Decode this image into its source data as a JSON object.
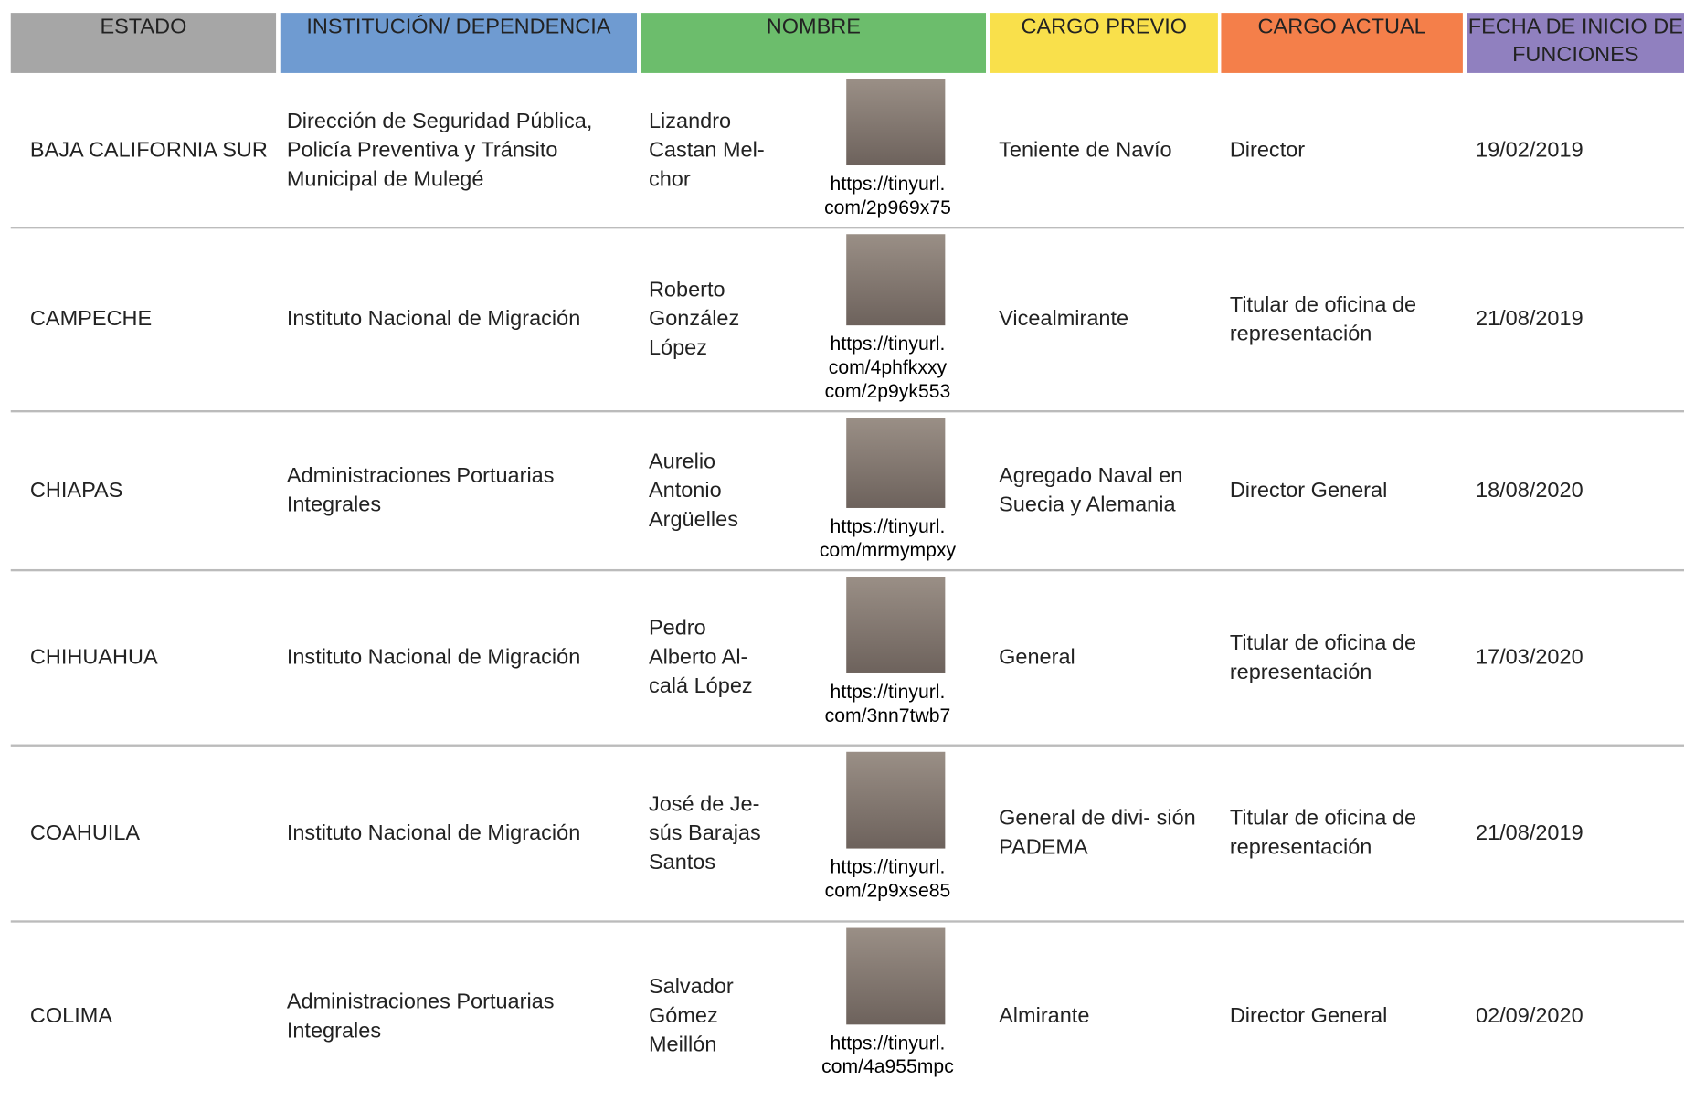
{
  "header": {
    "columns": [
      "ESTADO",
      "INSTITUCIÓN/ DEPENDENCIA",
      "NOMBRE",
      "CARGO PREVIO",
      "CARGO ACTUAL",
      "FECHA DE INICIO DE FUNCIONES"
    ]
  },
  "table": {
    "rows": [
      {
        "estado": "BAJA CALIFORNIA SUR",
        "institucion": "Dirección de Seguridad Pública, Policía Preventiva y Tránsito Municipal de Mulegé",
        "nombre": [
          "Lizandro",
          "Castan Mel-",
          "chor"
        ],
        "link": [
          "https://tinyurl.",
          "com/2p969x75"
        ],
        "cargo_previo": "Teniente de Navío",
        "cargo_actual": "Director",
        "fecha": "19/02/2019"
      },
      {
        "estado": "CAMPECHE",
        "institucion": "Instituto Nacional de Migración",
        "nombre": [
          "Roberto",
          "González",
          "López"
        ],
        "link": [
          "https://tinyurl.",
          "com/4phfkxxy",
          "com/2p9yk553"
        ],
        "cargo_previo": "Vicealmirante",
        "cargo_actual": "Titular de oficina de representación",
        "fecha": "21/08/2019"
      },
      {
        "estado": "CHIAPAS",
        "institucion": "Administraciones Portuarias Integrales",
        "nombre": [
          "Aurelio",
          "Antonio",
          "Argüelles"
        ],
        "link": [
          "https://tinyurl.",
          "com/mrmympxy"
        ],
        "cargo_previo": "Agregado Naval en Suecia y Alemania",
        "cargo_actual": "Director General",
        "fecha": "18/08/2020"
      },
      {
        "estado": "CHIHUAHUA",
        "institucion": "Instituto Nacional de Migración",
        "nombre": [
          "Pedro",
          "Alberto Al-",
          "calá López"
        ],
        "link": [
          "https://tinyurl.",
          "com/3nn7twb7"
        ],
        "cargo_previo": "General",
        "cargo_actual": "Titular de oficina de representación",
        "fecha": "17/03/2020"
      },
      {
        "estado": "COAHUILA",
        "institucion": "Instituto Nacional de Migración",
        "nombre": [
          "José de Je-",
          "sús Barajas",
          "Santos"
        ],
        "link": [
          "https://tinyurl.",
          "com/2p9xse85"
        ],
        "cargo_previo": "General de divi- sión PADEMA",
        "cargo_actual": "Titular de oficina de representación",
        "fecha": "21/08/2019"
      },
      {
        "estado": "COLIMA",
        "institucion": "Administraciones Portuarias Integrales",
        "nombre": [
          "Salvador",
          "Gómez",
          "Meillón"
        ],
        "link": [
          "https://tinyurl.",
          "com/4a955mpc"
        ],
        "cargo_previo": "Almirante",
        "cargo_actual": "Director General",
        "fecha": "02/09/2020"
      }
    ]
  }
}
